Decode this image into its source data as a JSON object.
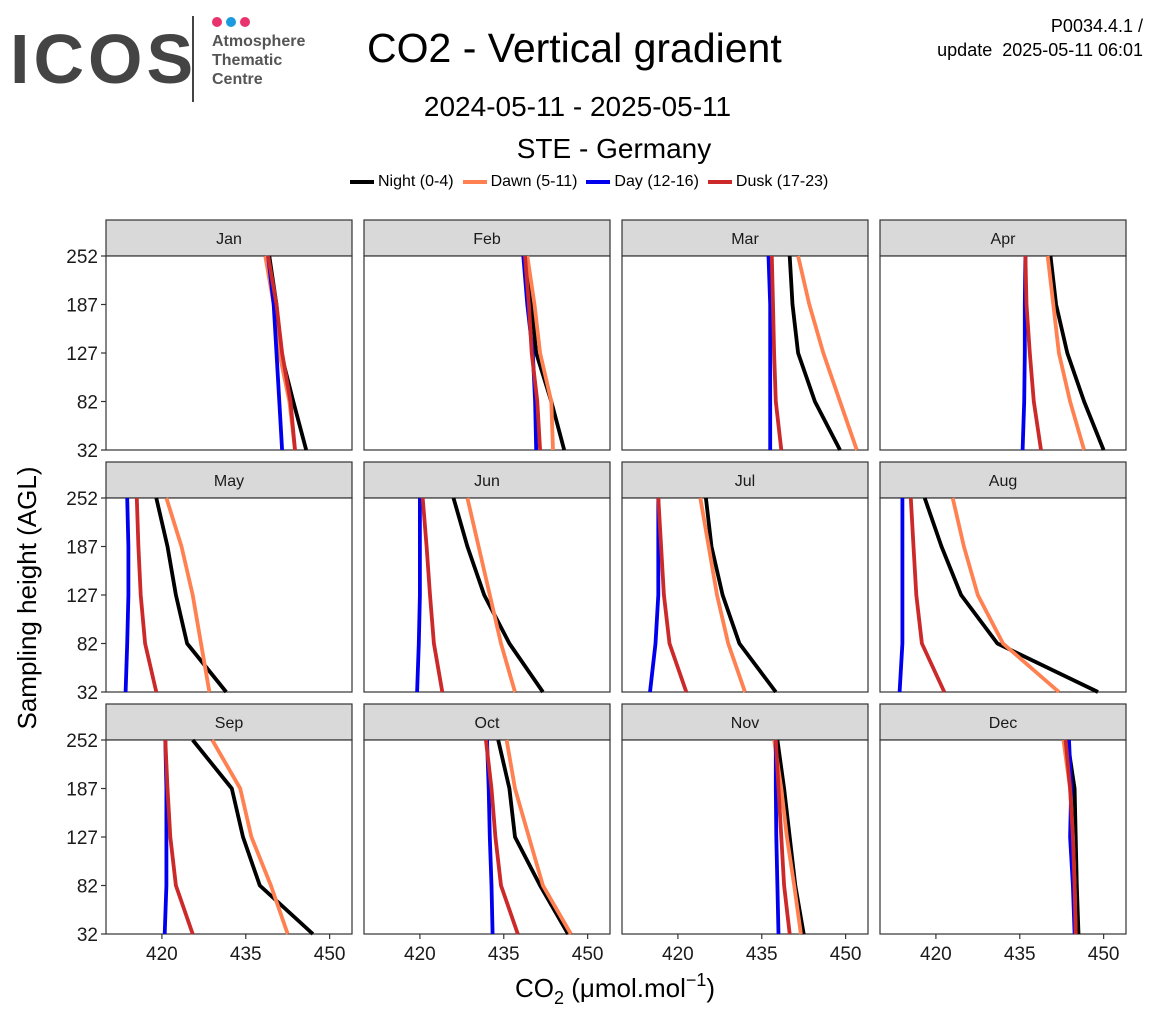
{
  "header": {
    "logo_text": "ICOS",
    "logo_sub_1": "Atmosphere",
    "logo_sub_2": "Thematic",
    "logo_sub_3": "Centre",
    "logo_dot_colors": [
      "#e8336f",
      "#1a9be0",
      "#e8336f"
    ],
    "version": "P0034.4.1 /",
    "update": "update  2025-05-11 06:01"
  },
  "chart_data": {
    "type": "line",
    "title": "CO2 - Vertical gradient",
    "subtitle": "2024-05-11 - 2025-05-11",
    "site": "STE - Germany",
    "xlabel_main": "CO",
    "xlabel_sub": "2",
    "xlabel_unit": "(μmol.mol",
    "xlabel_exp": "−1",
    "xlabel_close": ")",
    "ylabel": "Sampling height (AGL)",
    "xlim": [
      410,
      454
    ],
    "xticks": [
      420,
      435,
      450
    ],
    "yticks": [
      32,
      82,
      127,
      187,
      252
    ],
    "grid": false,
    "legend_placement": "top",
    "panels": [
      {
        "label": "Jan",
        "series": {
          "night": [
            445.8,
            443.5,
            441.3,
            440.5,
            439.2
          ],
          "dawn": [
            443.8,
            442.8,
            441.0,
            440.0,
            438.5
          ],
          "day": [
            441.5,
            441.0,
            440.5,
            440.0,
            439.0
          ],
          "dusk": [
            443.8,
            443.0,
            441.5,
            440.5,
            439.0
          ]
        }
      },
      {
        "label": "Feb",
        "series": {
          "night": [
            445.8,
            443.5,
            440.8,
            440.0,
            438.8
          ],
          "dawn": [
            443.8,
            443.5,
            441.5,
            440.5,
            439.2
          ],
          "day": [
            440.8,
            440.6,
            440.2,
            439.2,
            438.5
          ],
          "dusk": [
            441.5,
            441.0,
            440.0,
            439.5,
            438.8
          ]
        }
      },
      {
        "label": "Mar",
        "series": {
          "night": [
            449.0,
            444.5,
            441.5,
            440.5,
            440.0
          ],
          "dawn": [
            452.0,
            449.0,
            446.0,
            443.5,
            441.5
          ],
          "day": [
            436.5,
            436.5,
            436.5,
            436.5,
            436.2
          ],
          "dusk": [
            438.5,
            437.5,
            437.2,
            437.0,
            436.8
          ]
        }
      },
      {
        "label": "Apr",
        "series": {
          "night": [
            450.0,
            446.5,
            443.5,
            441.5,
            440.5
          ],
          "dawn": [
            446.5,
            444.0,
            442.0,
            441.0,
            440.0
          ],
          "day": [
            435.5,
            435.8,
            435.9,
            435.9,
            436.0
          ],
          "dusk": [
            438.8,
            437.5,
            436.8,
            436.2,
            436.0
          ]
        }
      },
      {
        "label": "May",
        "series": {
          "night": [
            431.5,
            424.5,
            422.5,
            421.0,
            419.0
          ],
          "dawn": [
            428.5,
            427.0,
            425.5,
            423.5,
            420.8
          ],
          "day": [
            413.5,
            413.8,
            414.0,
            414.0,
            413.8
          ],
          "dusk": [
            419.0,
            417.0,
            416.2,
            415.8,
            415.5
          ]
        }
      },
      {
        "label": "Jun",
        "series": {
          "night": [
            442.0,
            436.0,
            431.5,
            428.5,
            426.0
          ],
          "dawn": [
            437.0,
            434.5,
            432.5,
            430.5,
            428.5
          ],
          "day": [
            419.5,
            419.8,
            420.0,
            420.0,
            420.0
          ],
          "dusk": [
            424.0,
            422.5,
            421.8,
            421.2,
            420.5
          ]
        }
      },
      {
        "label": "Jul",
        "series": {
          "night": [
            437.5,
            431.0,
            428.0,
            426.0,
            425.0
          ],
          "dawn": [
            432.0,
            429.0,
            427.0,
            425.5,
            424.0
          ],
          "day": [
            415.0,
            416.0,
            416.5,
            416.5,
            416.5
          ],
          "dusk": [
            421.5,
            418.5,
            417.5,
            417.0,
            416.5
          ]
        }
      },
      {
        "label": "Aug",
        "series": {
          "night": [
            449.0,
            431.0,
            424.5,
            421.0,
            418.0
          ],
          "dawn": [
            442.0,
            432.0,
            427.5,
            425.0,
            423.0
          ],
          "day": [
            413.5,
            414.0,
            414.0,
            414.0,
            414.0
          ],
          "dusk": [
            421.5,
            417.5,
            416.5,
            416.0,
            415.5
          ]
        }
      },
      {
        "label": "Sep",
        "series": {
          "night": [
            447.0,
            437.5,
            434.5,
            432.5,
            425.5
          ],
          "dawn": [
            442.5,
            439.5,
            436.0,
            434.0,
            429.0
          ],
          "day": [
            420.5,
            420.8,
            420.8,
            420.8,
            420.6
          ],
          "dusk": [
            425.5,
            422.5,
            421.5,
            421.0,
            420.6
          ]
        }
      },
      {
        "label": "Oct",
        "series": {
          "night": [
            446.5,
            441.5,
            437.0,
            436.0,
            434.0
          ],
          "dawn": [
            447.0,
            442.0,
            439.5,
            437.0,
            435.5
          ],
          "day": [
            433.0,
            432.8,
            432.5,
            432.3,
            432.0
          ],
          "dusk": [
            437.5,
            434.5,
            433.5,
            432.8,
            431.8
          ]
        }
      },
      {
        "label": "Nov",
        "series": {
          "night": [
            442.5,
            441.0,
            440.0,
            439.0,
            437.8
          ],
          "dawn": [
            442.0,
            440.8,
            439.5,
            438.5,
            437.2
          ],
          "day": [
            438.0,
            437.8,
            437.6,
            437.5,
            437.5
          ],
          "dusk": [
            440.0,
            439.0,
            438.5,
            438.0,
            437.5
          ]
        }
      },
      {
        "label": "Dec",
        "series": {
          "night": [
            445.5,
            445.2,
            445.0,
            444.8,
            443.5
          ],
          "dawn": [
            445.0,
            444.8,
            444.5,
            444.0,
            442.8
          ],
          "day": [
            444.8,
            444.5,
            444.0,
            444.2,
            443.8
          ],
          "dusk": [
            445.0,
            444.8,
            444.5,
            444.0,
            443.2
          ]
        }
      }
    ],
    "series_meta": [
      {
        "key": "night",
        "name": "Night (0-4)",
        "color": "#000000"
      },
      {
        "key": "dawn",
        "name": "Dawn (5-11)",
        "color": "#ff8050"
      },
      {
        "key": "day",
        "name": "Day (12-16)",
        "color": "#0000ee"
      },
      {
        "key": "dusk",
        "name": "Dusk (17-23)",
        "color": "#cc2a2a"
      }
    ]
  }
}
